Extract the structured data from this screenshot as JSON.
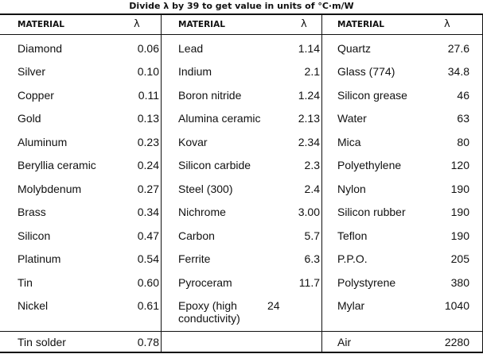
{
  "caption": "Divide λ by 39 to get value in units of °C·m/W",
  "headers": {
    "material": "MATERIAL",
    "lambda": "λ"
  },
  "rows": [
    {
      "c1": {
        "name": "Diamond",
        "value": "0.06"
      },
      "c2": {
        "name": "Lead",
        "value": "1.14"
      },
      "c3": {
        "name": "Quartz",
        "value": "27.6"
      }
    },
    {
      "c1": {
        "name": "Silver",
        "value": "0.10"
      },
      "c2": {
        "name": "Indium",
        "value": "2.1"
      },
      "c3": {
        "name": "Glass (774)",
        "value": "34.8"
      }
    },
    {
      "c1": {
        "name": "Copper",
        "value": "0.11"
      },
      "c2": {
        "name": "Boron nitride",
        "value": "1.24"
      },
      "c3": {
        "name": "Silicon grease",
        "value": "46"
      }
    },
    {
      "c1": {
        "name": "Gold",
        "value": "0.13"
      },
      "c2": {
        "name": "Alumina ceramic",
        "value": "2.13"
      },
      "c3": {
        "name": "Water",
        "value": "63"
      }
    },
    {
      "c1": {
        "name": "Aluminum",
        "value": "0.23"
      },
      "c2": {
        "name": "Kovar",
        "value": "2.34"
      },
      "c3": {
        "name": "Mica",
        "value": "80"
      }
    },
    {
      "c1": {
        "name": "Beryllia ceramic",
        "value": "0.24"
      },
      "c2": {
        "name": "Silicon carbide",
        "value": "2.3"
      },
      "c3": {
        "name": "Polyethylene",
        "value": "120"
      }
    },
    {
      "c1": {
        "name": "Molybdenum",
        "value": "0.27"
      },
      "c2": {
        "name": "Steel (300)",
        "value": "2.4"
      },
      "c3": {
        "name": "Nylon",
        "value": "190"
      }
    },
    {
      "c1": {
        "name": "Brass",
        "value": "0.34"
      },
      "c2": {
        "name": "Nichrome",
        "value": "3.00"
      },
      "c3": {
        "name": "Silicon rubber",
        "value": "190"
      }
    },
    {
      "c1": {
        "name": "Silicon",
        "value": "0.47"
      },
      "c2": {
        "name": "Carbon",
        "value": "5.7"
      },
      "c3": {
        "name": "Teflon",
        "value": "190"
      }
    },
    {
      "c1": {
        "name": "Platinum",
        "value": "0.54"
      },
      "c2": {
        "name": "Ferrite",
        "value": "6.3"
      },
      "c3": {
        "name": "P.P.O.",
        "value": "205"
      }
    },
    {
      "c1": {
        "name": "Tin",
        "value": "0.60"
      },
      "c2": {
        "name": "Pyroceram",
        "value": "11.7"
      },
      "c3": {
        "name": "Polystyrene",
        "value": "380"
      }
    },
    {
      "c1": {
        "name": "Nickel",
        "value": "0.61"
      },
      "c2": {
        "name": "Epoxy (high conductivity)",
        "value": "24"
      },
      "c3": {
        "name": "Mylar",
        "value": "1040"
      }
    },
    {
      "c1": {
        "name": "Tin solder",
        "value": "0.78"
      },
      "c2": {
        "name": "",
        "value": ""
      },
      "c3": {
        "name": "Air",
        "value": "2280"
      }
    }
  ]
}
